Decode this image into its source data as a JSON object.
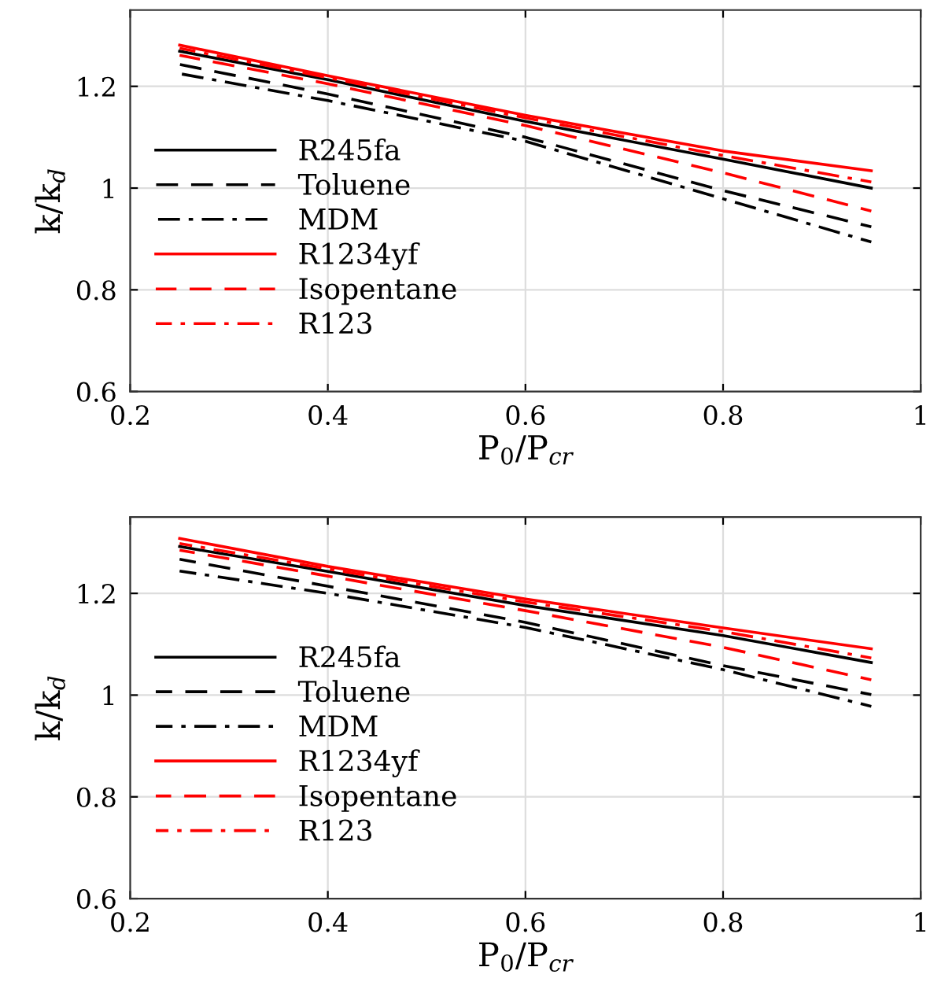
{
  "chart_data": [
    {
      "type": "line",
      "xlabel": "P$_{0}$/P$_{cr}$",
      "ylabel": "k/k$_{d}$",
      "xlim": [
        0.2,
        1
      ],
      "ylim": [
        0.6,
        1.35
      ],
      "xticks": [
        0.2,
        0.4,
        0.6,
        0.8,
        1
      ],
      "yticks": [
        0.6,
        0.8,
        1,
        1.2
      ],
      "grid": true,
      "legend": "left",
      "x": [
        0.25,
        0.4,
        0.6,
        0.8,
        0.95
      ],
      "series": [
        {
          "name": "R245fa",
          "color": "#000000",
          "line_style": "solid",
          "values": [
            1.269,
            1.213,
            1.131,
            1.057,
            1.0
          ]
        },
        {
          "name": "Toluene",
          "color": "#000000",
          "line_style": "dashed",
          "values": [
            1.243,
            1.185,
            1.1,
            0.995,
            0.924
          ]
        },
        {
          "name": "MDM",
          "color": "#000000",
          "line_style": "dashdot",
          "values": [
            1.225,
            1.172,
            1.092,
            0.979,
            0.894
          ]
        },
        {
          "name": "R1234yf",
          "color": "#ff0000",
          "line_style": "solid",
          "values": [
            1.281,
            1.221,
            1.143,
            1.073,
            1.034
          ]
        },
        {
          "name": "Isopentane",
          "color": "#ff0000",
          "line_style": "dashed",
          "values": [
            1.261,
            1.205,
            1.123,
            1.03,
            0.955
          ]
        },
        {
          "name": "R123",
          "color": "#ff0000",
          "line_style": "dashdot",
          "values": [
            1.275,
            1.217,
            1.138,
            1.064,
            1.012
          ]
        }
      ]
    },
    {
      "type": "line",
      "xlabel": "P$_{0}$/P$_{cr}$",
      "ylabel": "k/k$_{d}$",
      "xlim": [
        0.2,
        1
      ],
      "ylim": [
        0.6,
        1.35
      ],
      "xticks": [
        0.2,
        0.4,
        0.6,
        0.8,
        1
      ],
      "yticks": [
        0.6,
        0.8,
        1,
        1.2
      ],
      "grid": true,
      "legend": "left",
      "x": [
        0.25,
        0.4,
        0.6,
        0.8,
        0.95
      ],
      "series": [
        {
          "name": "R245fa",
          "color": "#000000",
          "line_style": "solid",
          "values": [
            1.292,
            1.243,
            1.176,
            1.117,
            1.064
          ]
        },
        {
          "name": "Toluene",
          "color": "#000000",
          "line_style": "dashed",
          "values": [
            1.267,
            1.214,
            1.143,
            1.058,
            1.001
          ]
        },
        {
          "name": "MDM",
          "color": "#000000",
          "line_style": "dashdot",
          "values": [
            1.244,
            1.2,
            1.133,
            1.05,
            0.978
          ]
        },
        {
          "name": "R1234yf",
          "color": "#ff0000",
          "line_style": "solid",
          "values": [
            1.308,
            1.253,
            1.189,
            1.132,
            1.091
          ]
        },
        {
          "name": "Isopentane",
          "color": "#ff0000",
          "line_style": "dashed",
          "values": [
            1.285,
            1.234,
            1.166,
            1.094,
            1.03
          ]
        },
        {
          "name": "R123",
          "color": "#ff0000",
          "line_style": "dashdot",
          "values": [
            1.298,
            1.248,
            1.183,
            1.125,
            1.073
          ]
        }
      ]
    }
  ]
}
